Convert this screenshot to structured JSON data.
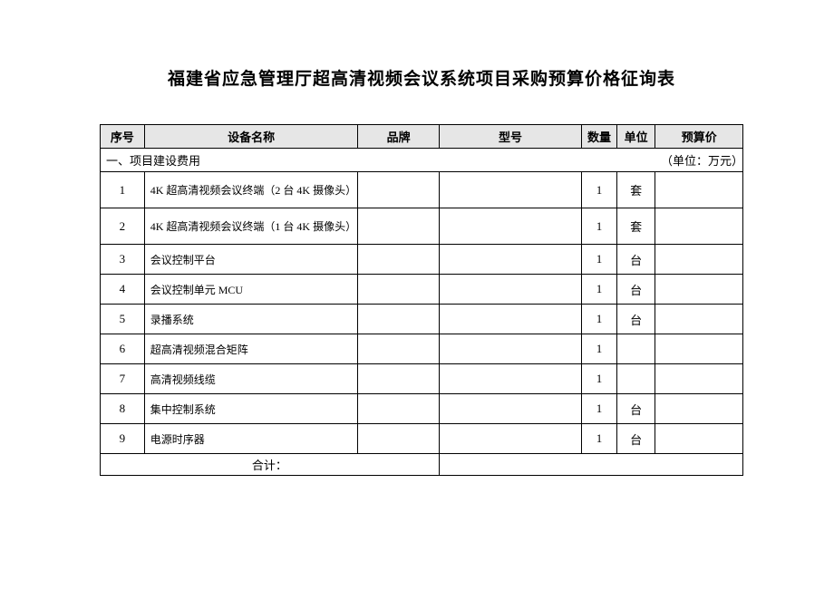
{
  "title": "福建省应急管理厅超高清视频会议系统项目采购预算价格征询表",
  "columns": {
    "seq": "序号",
    "name": "设备名称",
    "brand": "品牌",
    "model": "型号",
    "qty": "数量",
    "unit": "单位",
    "price": "预算价"
  },
  "section": {
    "label": "一、项目建设费用",
    "unit_note": "（单位：万元）"
  },
  "rows": [
    {
      "seq": "1",
      "name": "4K 超高清视频会议终端（2 台 4K 摄像头）",
      "brand": "",
      "model": "",
      "qty": "1",
      "unit": "套",
      "price": "",
      "tall": true
    },
    {
      "seq": "2",
      "name": "4K 超高清视频会议终端（1 台 4K 摄像头）",
      "brand": "",
      "model": "",
      "qty": "1",
      "unit": "套",
      "price": "",
      "tall": true
    },
    {
      "seq": "3",
      "name": "会议控制平台",
      "brand": "",
      "model": "",
      "qty": "1",
      "unit": "台",
      "price": "",
      "tall": false
    },
    {
      "seq": "4",
      "name": "会议控制单元 MCU",
      "brand": "",
      "model": "",
      "qty": "1",
      "unit": "台",
      "price": "",
      "tall": false
    },
    {
      "seq": "5",
      "name": "录播系统",
      "brand": "",
      "model": "",
      "qty": "1",
      "unit": "台",
      "price": "",
      "tall": false
    },
    {
      "seq": "6",
      "name": "超高清视频混合矩阵",
      "brand": "",
      "model": "",
      "qty": "1",
      "unit": "",
      "price": "",
      "tall": false
    },
    {
      "seq": "7",
      "name": "高清视频线缆",
      "brand": "",
      "model": "",
      "qty": "1",
      "unit": "",
      "price": "",
      "tall": false
    },
    {
      "seq": "8",
      "name": "集中控制系统",
      "brand": "",
      "model": "",
      "qty": "1",
      "unit": "台",
      "price": "",
      "tall": false
    },
    {
      "seq": "9",
      "name": "电源时序器",
      "brand": "",
      "model": "",
      "qty": "1",
      "unit": "台",
      "price": "",
      "tall": false
    }
  ],
  "footer": {
    "label": "合计："
  }
}
